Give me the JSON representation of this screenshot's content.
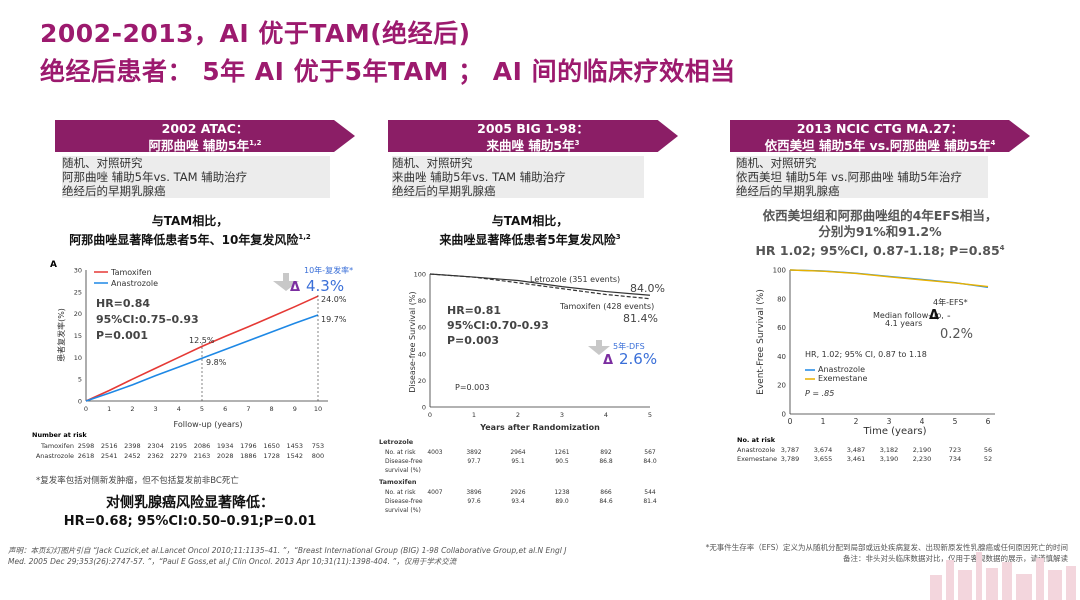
{
  "title": {
    "line1": "2002-2013，AI 优于TAM(绝经后)",
    "line2": "绝经后患者：  5年 AI 优于5年TAM ；  AI 间的临床疗效相当"
  },
  "colors": {
    "accent": "#9c1a6e",
    "banner": "#8b1e66",
    "tamoxifen": "#e53935",
    "anastrozole": "#1e88e5"
  },
  "col1": {
    "banner_l1": "2002 ATAC：",
    "banner_l2": "阿那曲唑 辅助5年",
    "banner_sup": "1,2",
    "desc": [
      "随机、对照研究",
      "阿那曲唑 辅助5年vs. TAM 辅助治疗",
      "绝经后的早期乳腺癌"
    ],
    "finding_l1": "与TAM相比，",
    "finding_l2": "阿那曲唑显著降低患者5年、10年复发风险",
    "finding_sup": "1,2",
    "note": "*复发率包括对侧新发肿瘤，但不包括复发前非BC死亡",
    "bottom_l1": "对侧乳腺癌风险显著降低：",
    "bottom_l2": "HR=0.68; 95%CI:0.50–0.91;P=0.01",
    "chart": {
      "panel": "A",
      "ylabel": "患者复发率(%)",
      "xlabel": "Follow-up (years)",
      "legend": [
        "Tamoxifen",
        "Anastrozole"
      ],
      "yticks": [
        "0",
        "5",
        "10",
        "15",
        "20",
        "25",
        "30"
      ],
      "xticks": [
        "0",
        "1",
        "2",
        "3",
        "4",
        "5",
        "6",
        "7",
        "8",
        "9",
        "10"
      ],
      "labels": {
        "t5": "12.5%",
        "a5": "9.8%",
        "t10": "24.0%",
        "a10": "19.7%"
      },
      "hr": "HR=0.84",
      "ci": "95%CI:0.75–0.93",
      "p": "P=0.001",
      "delta_label": "10年-复发率*",
      "delta_value": "4.3%",
      "risk_header": "Number at risk",
      "risk_rows": [
        {
          "name": "Tamoxifen",
          "values": [
            "2598",
            "2516",
            "2398",
            "2304",
            "2195",
            "2086",
            "1934",
            "1796",
            "1650",
            "1453",
            "753"
          ]
        },
        {
          "name": "Anastrozole",
          "values": [
            "2618",
            "2541",
            "2452",
            "2362",
            "2279",
            "2163",
            "2028",
            "1886",
            "1728",
            "1542",
            "800"
          ]
        }
      ]
    }
  },
  "col2": {
    "banner_l1": "2005 BIG 1-98：",
    "banner_l2": "来曲唑 辅助5年",
    "banner_sup": "3",
    "desc": [
      "随机、对照研究",
      "来曲唑 辅助5年vs. TAM 辅助治疗",
      "绝经后的早期乳腺癌"
    ],
    "finding_l1": "与TAM相比，",
    "finding_l2": "来曲唑显著降低患者5年复发风险",
    "finding_sup": "3",
    "chart": {
      "ylabel": "Disease-free Survival (%)",
      "xlabel": "Years after Randomization",
      "yticks": [
        "0",
        "20",
        "40",
        "60",
        "80",
        "100"
      ],
      "xticks": [
        "0",
        "1",
        "2",
        "3",
        "4",
        "5"
      ],
      "letrozole_label": "Letrozole (351 events)",
      "tamoxifen_label": "Tamoxifen (428 events)",
      "let_value": "84.0%",
      "tam_value": "81.4%",
      "hr": "HR=0.81",
      "ci": "95%CI:0.70-0.93",
      "p": "P=0.003",
      "p_small": "P=0.003",
      "delta_label": "5年-DFS",
      "delta_value": "2.6%",
      "risk_groups": [
        {
          "name": "Letrozole",
          "n": "4003",
          "rows": [
            {
              "label": "No. at risk",
              "values": [
                "3892",
                "2964",
                "1261",
                "892",
                "567"
              ]
            },
            {
              "label": "Disease-free",
              "values": [
                "97.7",
                "95.1",
                "90.5",
                "86.8",
                "84.0"
              ]
            }
          ],
          "sub": "survival (%)"
        },
        {
          "name": "Tamoxifen",
          "n": "4007",
          "rows": [
            {
              "label": "No. at risk",
              "values": [
                "3896",
                "2926",
                "1238",
                "866",
                "544"
              ]
            },
            {
              "label": "Disease-free",
              "values": [
                "97.6",
                "93.4",
                "89.0",
                "84.6",
                "81.4"
              ]
            }
          ],
          "sub": "survival (%)"
        }
      ]
    }
  },
  "col3": {
    "banner_l1": "2013 NCIC CTG MA.27：",
    "banner_l2": "依西美坦 辅助5年 vs.阿那曲唑 辅助5年",
    "banner_sup": "4",
    "desc": [
      "随机、对照研究",
      "依西美坦 辅助5年 vs.阿那曲唑 辅助5年治疗",
      "绝经后的早期乳腺癌"
    ],
    "finding_l1": "依西美坦组和阿那曲唑组的4年EFS相当，",
    "finding_l2": "分别为91%和91.2%",
    "finding_l3": "HR 1.02; 95%CI, 0.87-1.18; P=0.85",
    "finding_sup": "4",
    "chart": {
      "ylabel": "Event-Free Survival (%)",
      "xlabel": "Time (years)",
      "yticks": [
        "0",
        "20",
        "40",
        "60",
        "80",
        "100"
      ],
      "xticks": [
        "0",
        "1",
        "2",
        "3",
        "4",
        "5",
        "6"
      ],
      "median": "Median follow-up,",
      "median2": "4.1 years",
      "efs_label": "4年-EFS*",
      "efs_value": "0.2%",
      "hr_text": "HR, 1.02; 95% CI, 0.87 to 1.18",
      "legend": [
        "Anastrozole",
        "Exemestane"
      ],
      "p": "P = .85",
      "risk_header": "No. at risk",
      "risk_rows": [
        {
          "name": "Anastrozole",
          "values": [
            "3,787",
            "3,674",
            "3,487",
            "3,182",
            "2,190",
            "723",
            "56"
          ]
        },
        {
          "name": "Exemestane",
          "values": [
            "3,789",
            "3,655",
            "3,461",
            "3,190",
            "2,230",
            "734",
            "52"
          ]
        }
      ]
    }
  },
  "footnote_left": "声明：本页幻灯图片引自 “Jack Cuzick,et al.Lancet Oncol 2010;11:1135–41. ”，“Breast International Group (BIG) 1-98 Collaborative Group,et al.N Engl J Med. 2005 Dec 29;353(26):2747-57. ”，“Paul E Goss,et al.J Clin Oncol. 2013 Apr 10;31(11):1398-404. ”，仅用于学术交流",
  "footnote_right": "*无事件生存率（EFS）定义为从随机分配到局部或远处疾病复发、出现新原发性乳腺癌或任何原因死亡的时间",
  "footnote_right2": "备注：非头对头临床数据对比，仅用于客观数据的展示，请谨慎解读"
}
